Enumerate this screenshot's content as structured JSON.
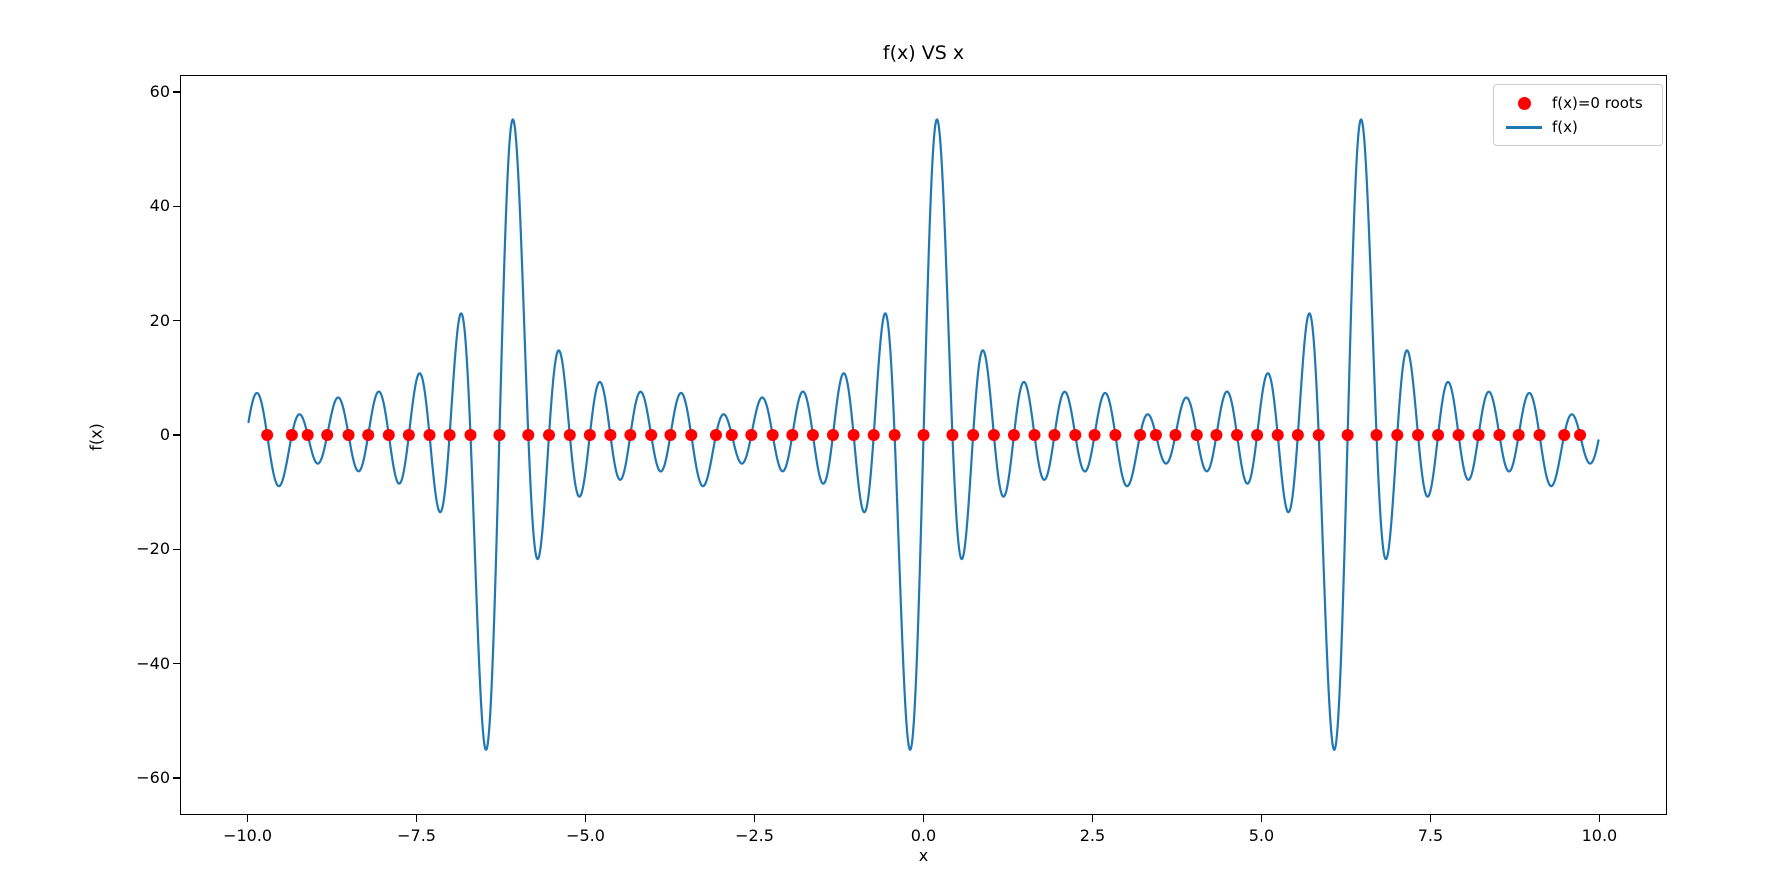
{
  "chart_data": {
    "type": "line",
    "title": "f(x) VS x",
    "xlabel": "x",
    "ylabel": "f(x)",
    "xlim": [
      -11,
      11
    ],
    "ylim": [
      -66.5,
      63
    ],
    "grid": false,
    "background": "#ffffff",
    "x_ticks": {
      "values": [
        -10,
        -7.5,
        -5,
        -2.5,
        0,
        2.5,
        5,
        7.5,
        10
      ],
      "labels": [
        "−10.0",
        "−7.5",
        "−5.0",
        "−2.5",
        "0.0",
        "2.5",
        "5.0",
        "7.5",
        "10.0"
      ]
    },
    "y_ticks": {
      "values": [
        -60,
        -40,
        -20,
        0,
        20,
        40,
        60
      ],
      "labels": [
        "−60",
        "−40",
        "−20",
        "0",
        "20",
        "40",
        "60"
      ]
    },
    "series": [
      {
        "name": "f(x)",
        "type": "line",
        "color": "#1f77b4",
        "linewidth": 2.2,
        "x_range": [
          -10,
          10
        ],
        "samples": 2600,
        "generator": {
          "kind": "trigonometric_series",
          "formula": "f(x) = sum_{k=1..10} [ a_k*sin(k*x) + c_k*cos(k*x) ]  (2*pi periodic)",
          "sin_coeffs": [
            1.15,
            2.3,
            3.45,
            4.6,
            5.75,
            6.9,
            8.05,
            9.2,
            10.35,
            11.5
          ],
          "cos_coeffs": [
            0.3,
            -0.5,
            0.4,
            -0.6,
            0.5,
            -0.4,
            0.45,
            -0.35,
            0.3,
            -0.45
          ]
        },
        "observed_features": {
          "max_value": 56,
          "max_near_x": [
            -6.0,
            0.25,
            6.55
          ],
          "min_value": -60,
          "min_near_x": [
            -6.52,
            -0.26,
            6.1
          ],
          "typical_oscillation_amplitude": [
            8,
            23
          ],
          "period": 6.2832
        }
      },
      {
        "name": "f(x)=0 roots",
        "type": "scatter",
        "color": "#ff0000",
        "marker": "circle",
        "marker_radius_px": 6,
        "y_value": 0,
        "definition": "all x in [-10,10] where f(x) = 0 (red dots on the zero line)"
      }
    ],
    "legend": {
      "position": "upper right",
      "entries": [
        {
          "label": "f(x)=0 roots",
          "marker": "dot",
          "color": "#ff0000"
        },
        {
          "label": "f(x)",
          "marker": "line",
          "color": "#1f77b4"
        }
      ]
    }
  }
}
